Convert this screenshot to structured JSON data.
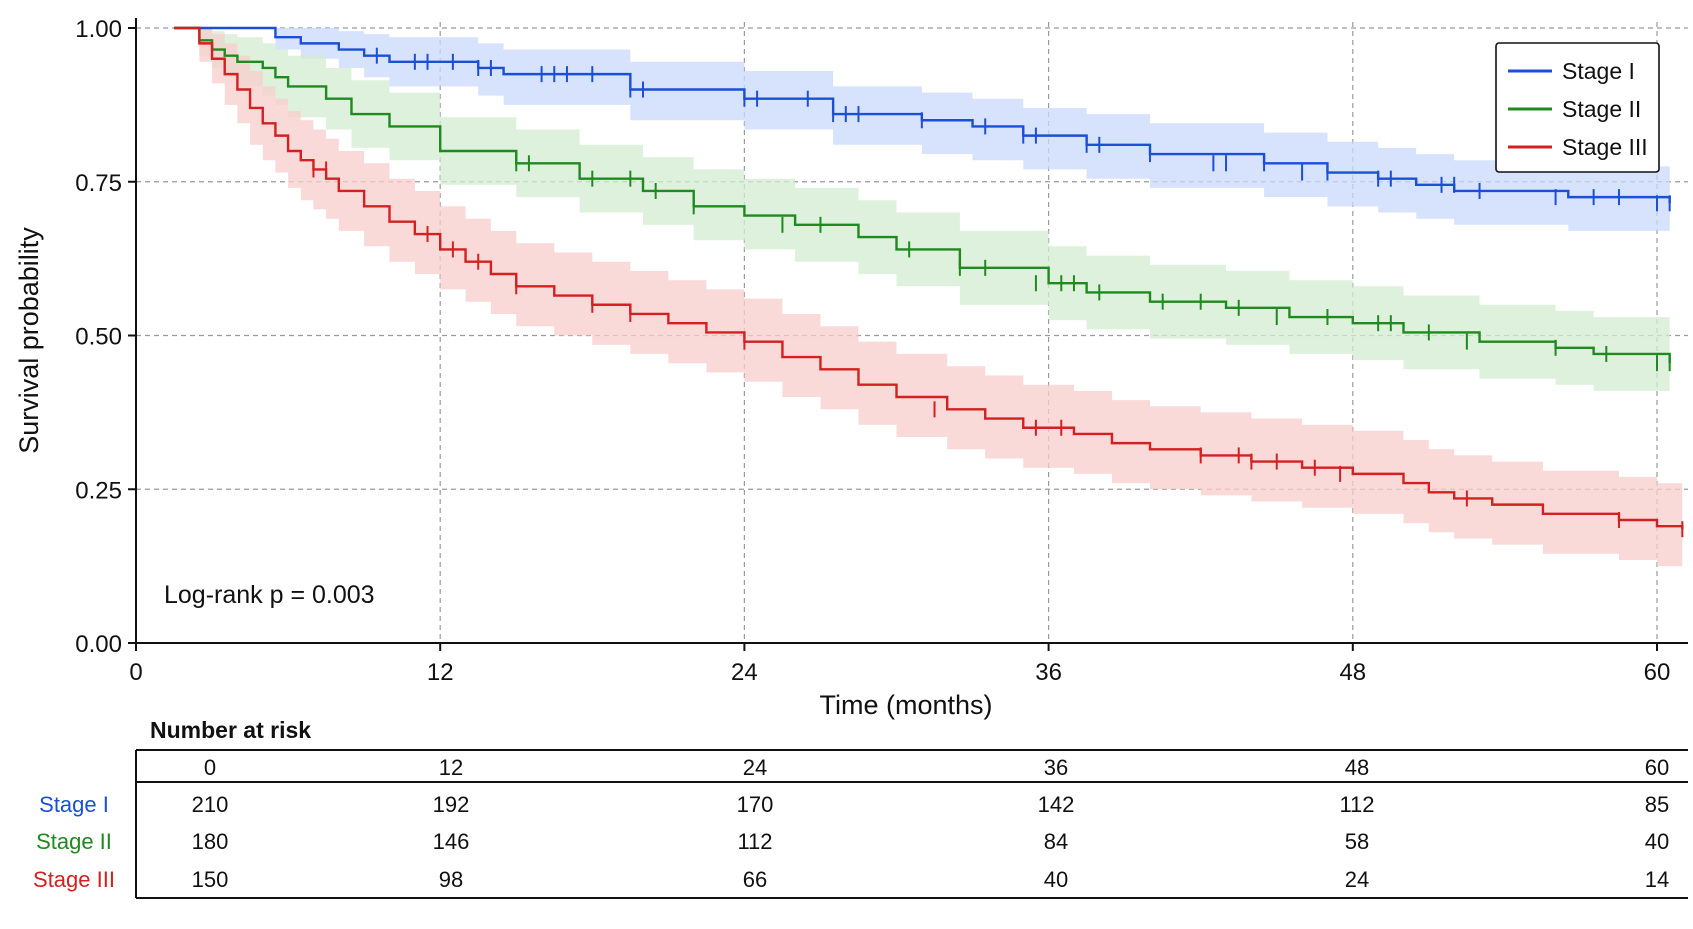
{
  "chart_data": {
    "type": "line",
    "step": true,
    "xlabel": "Time (months)",
    "ylabel": "Survival probability",
    "xlim": [
      0,
      61
    ],
    "ylim": [
      0,
      1
    ],
    "xticks": [
      0,
      12,
      24,
      36,
      48,
      60
    ],
    "yticks": [
      0.0,
      0.25,
      0.5,
      0.75,
      1.0
    ],
    "ytick_labels": [
      "0.00",
      "0.25",
      "0.50",
      "0.75",
      "1.00"
    ],
    "grid": true,
    "legend_position": "top-right",
    "annotation": "Log-rank p = 0.003",
    "series": [
      {
        "name": "Stage I",
        "color": "#1a4fd6",
        "band_color": "#c9d9fb",
        "x": [
          1.5,
          5.5,
          6.5,
          8.0,
          9.0,
          10.0,
          13.5,
          14.5,
          19.5,
          24.0,
          27.5,
          31.0,
          33.0,
          35.0,
          37.5,
          40.0,
          44.5,
          47.0,
          49.0,
          50.5,
          52.0,
          56.5,
          60.5
        ],
        "y": [
          1.0,
          0.985,
          0.975,
          0.965,
          0.955,
          0.945,
          0.935,
          0.925,
          0.9,
          0.885,
          0.86,
          0.85,
          0.84,
          0.825,
          0.81,
          0.795,
          0.78,
          0.765,
          0.755,
          0.745,
          0.735,
          0.725,
          0.715
        ],
        "upper": [
          1.0,
          1.0,
          1.0,
          0.995,
          0.99,
          0.985,
          0.975,
          0.965,
          0.945,
          0.93,
          0.905,
          0.895,
          0.885,
          0.87,
          0.86,
          0.845,
          0.83,
          0.815,
          0.805,
          0.795,
          0.785,
          0.775,
          0.765
        ],
        "lower": [
          1.0,
          0.965,
          0.95,
          0.935,
          0.92,
          0.905,
          0.89,
          0.875,
          0.85,
          0.835,
          0.81,
          0.795,
          0.785,
          0.77,
          0.755,
          0.74,
          0.725,
          0.71,
          0.7,
          0.69,
          0.68,
          0.67,
          0.66
        ],
        "censor_x": [
          9.5,
          11.0,
          11.5,
          12.5,
          13.5,
          14.0,
          16.0,
          16.5,
          17.0,
          18.0,
          19.5,
          20.0,
          24.0,
          24.5,
          26.5,
          27.5,
          28.0,
          28.5,
          31.0,
          33.5,
          35.0,
          35.5,
          37.5,
          38.0,
          40.0,
          42.5,
          43.0,
          44.5,
          46.0,
          47.0,
          49.0,
          49.5,
          51.5,
          52.0,
          53.0,
          56.0,
          57.5,
          58.5,
          60.0,
          60.5
        ],
        "censor_y": [
          0.955,
          0.945,
          0.945,
          0.945,
          0.935,
          0.935,
          0.925,
          0.925,
          0.925,
          0.925,
          0.9,
          0.9,
          0.885,
          0.885,
          0.885,
          0.86,
          0.86,
          0.86,
          0.85,
          0.84,
          0.825,
          0.825,
          0.81,
          0.81,
          0.795,
          0.78,
          0.78,
          0.78,
          0.765,
          0.765,
          0.755,
          0.755,
          0.745,
          0.745,
          0.735,
          0.725,
          0.725,
          0.725,
          0.715,
          0.715
        ]
      },
      {
        "name": "Stage II",
        "color": "#1f8a1f",
        "band_color": "#d3ecd0",
        "x": [
          1.5,
          2.5,
          3.0,
          3.5,
          4.0,
          5.0,
          5.5,
          6.0,
          7.5,
          8.5,
          10.0,
          12.0,
          15.0,
          17.5,
          20.0,
          22.0,
          24.0,
          26.0,
          28.5,
          30.0,
          32.5,
          36.0,
          37.5,
          40.0,
          43.0,
          45.5,
          48.0,
          50.0,
          53.0,
          56.0,
          57.5,
          60.5
        ],
        "y": [
          1.0,
          0.98,
          0.965,
          0.955,
          0.945,
          0.935,
          0.92,
          0.905,
          0.885,
          0.86,
          0.84,
          0.8,
          0.78,
          0.755,
          0.735,
          0.71,
          0.695,
          0.68,
          0.66,
          0.64,
          0.61,
          0.585,
          0.57,
          0.555,
          0.545,
          0.53,
          0.52,
          0.505,
          0.49,
          0.48,
          0.47,
          0.455
        ],
        "upper": [
          1.0,
          1.0,
          0.995,
          0.99,
          0.985,
          0.975,
          0.965,
          0.955,
          0.935,
          0.915,
          0.895,
          0.855,
          0.835,
          0.81,
          0.79,
          0.77,
          0.755,
          0.74,
          0.72,
          0.7,
          0.67,
          0.645,
          0.63,
          0.615,
          0.605,
          0.59,
          0.58,
          0.565,
          0.55,
          0.54,
          0.53,
          0.515
        ],
        "lower": [
          1.0,
          0.955,
          0.935,
          0.92,
          0.905,
          0.89,
          0.875,
          0.855,
          0.835,
          0.805,
          0.785,
          0.745,
          0.725,
          0.7,
          0.68,
          0.655,
          0.64,
          0.62,
          0.6,
          0.58,
          0.55,
          0.525,
          0.51,
          0.495,
          0.485,
          0.47,
          0.46,
          0.445,
          0.43,
          0.42,
          0.41,
          0.4
        ],
        "censor_x": [
          15.0,
          15.5,
          18.0,
          19.5,
          20.5,
          22.0,
          25.5,
          27.0,
          30.5,
          32.5,
          33.5,
          35.5,
          36.5,
          37.0,
          38.0,
          40.5,
          42.0,
          43.5,
          45.0,
          47.0,
          49.0,
          49.5,
          51.0,
          52.5,
          56.0,
          58.0,
          60.0,
          60.5
        ],
        "censor_y": [
          0.78,
          0.78,
          0.755,
          0.755,
          0.735,
          0.71,
          0.68,
          0.68,
          0.64,
          0.61,
          0.61,
          0.585,
          0.585,
          0.585,
          0.57,
          0.555,
          0.555,
          0.545,
          0.53,
          0.53,
          0.52,
          0.52,
          0.505,
          0.49,
          0.48,
          0.47,
          0.455,
          0.455
        ]
      },
      {
        "name": "Stage III",
        "color": "#d42020",
        "band_color": "#f8cccc",
        "x": [
          1.5,
          2.5,
          3.0,
          3.5,
          4.0,
          4.5,
          5.0,
          5.5,
          6.0,
          6.5,
          7.0,
          7.5,
          8.0,
          9.0,
          10.0,
          11.0,
          12.0,
          13.0,
          14.0,
          15.0,
          16.5,
          18.0,
          19.5,
          21.0,
          22.5,
          24.0,
          25.5,
          27.0,
          28.5,
          30.0,
          32.0,
          33.5,
          35.0,
          37.0,
          38.5,
          40.0,
          42.0,
          44.0,
          46.0,
          48.0,
          50.0,
          51.0,
          52.0,
          53.5,
          55.5,
          58.5,
          60.0,
          61.0
        ],
        "y": [
          1.0,
          0.975,
          0.95,
          0.925,
          0.9,
          0.87,
          0.845,
          0.825,
          0.8,
          0.785,
          0.77,
          0.755,
          0.735,
          0.71,
          0.685,
          0.665,
          0.64,
          0.62,
          0.6,
          0.58,
          0.565,
          0.55,
          0.535,
          0.52,
          0.505,
          0.49,
          0.465,
          0.445,
          0.42,
          0.4,
          0.38,
          0.365,
          0.35,
          0.34,
          0.325,
          0.315,
          0.305,
          0.295,
          0.285,
          0.275,
          0.26,
          0.245,
          0.235,
          0.225,
          0.21,
          0.2,
          0.19,
          0.185
        ],
        "upper": [
          1.0,
          1.0,
          0.99,
          0.975,
          0.955,
          0.93,
          0.905,
          0.885,
          0.865,
          0.85,
          0.835,
          0.82,
          0.8,
          0.78,
          0.755,
          0.735,
          0.71,
          0.69,
          0.67,
          0.65,
          0.635,
          0.62,
          0.605,
          0.59,
          0.575,
          0.56,
          0.535,
          0.515,
          0.49,
          0.47,
          0.45,
          0.435,
          0.42,
          0.41,
          0.395,
          0.385,
          0.375,
          0.365,
          0.355,
          0.345,
          0.33,
          0.315,
          0.305,
          0.295,
          0.28,
          0.27,
          0.26,
          0.255
        ],
        "lower": [
          1.0,
          0.945,
          0.91,
          0.875,
          0.845,
          0.81,
          0.785,
          0.765,
          0.74,
          0.72,
          0.705,
          0.69,
          0.67,
          0.645,
          0.62,
          0.6,
          0.575,
          0.555,
          0.535,
          0.515,
          0.5,
          0.485,
          0.47,
          0.455,
          0.44,
          0.425,
          0.4,
          0.38,
          0.355,
          0.335,
          0.315,
          0.3,
          0.285,
          0.275,
          0.26,
          0.25,
          0.24,
          0.23,
          0.22,
          0.21,
          0.195,
          0.18,
          0.17,
          0.16,
          0.145,
          0.135,
          0.125,
          0.12
        ],
        "censor_x": [
          7.0,
          7.5,
          11.5,
          12.5,
          13.5,
          15.0,
          18.0,
          19.5,
          24.0,
          31.5,
          35.5,
          36.5,
          42.0,
          43.5,
          44.0,
          45.0,
          46.5,
          47.5,
          52.5,
          58.5,
          61.0
        ],
        "censor_y": [
          0.77,
          0.77,
          0.665,
          0.64,
          0.62,
          0.58,
          0.55,
          0.535,
          0.49,
          0.38,
          0.35,
          0.35,
          0.305,
          0.305,
          0.295,
          0.295,
          0.285,
          0.275,
          0.235,
          0.2,
          0.185
        ]
      }
    ]
  },
  "risk_table": {
    "title": "Number at risk",
    "times": [
      "0",
      "12",
      "24",
      "36",
      "48",
      "60"
    ],
    "groups": [
      {
        "label": "Stage I",
        "color": "#1a4fd6",
        "counts": [
          "210",
          "192",
          "170",
          "142",
          "112",
          "85"
        ]
      },
      {
        "label": "Stage II",
        "color": "#1f8a1f",
        "counts": [
          "180",
          "146",
          "112",
          "84",
          "58",
          "40"
        ]
      },
      {
        "label": "Stage III",
        "color": "#d42020",
        "counts": [
          "150",
          "98",
          "66",
          "40",
          "24",
          "14"
        ]
      }
    ]
  }
}
